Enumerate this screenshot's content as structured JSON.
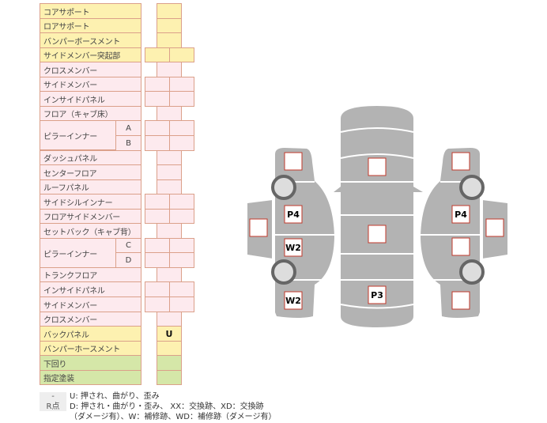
{
  "rows": [
    {
      "label": "コアサポート",
      "type": "single",
      "color": "y"
    },
    {
      "label": "ロアサポート",
      "type": "single",
      "color": "y"
    },
    {
      "label": "バンパーボースメント",
      "type": "single",
      "color": "y"
    },
    {
      "label": "サイドメンバー突起部",
      "type": "double",
      "color": "y"
    },
    {
      "label": "クロスメンバー",
      "type": "single",
      "color": "p"
    },
    {
      "label": "サイドメンバー",
      "type": "double",
      "color": "p"
    },
    {
      "label": "インサイドパネル",
      "type": "double",
      "color": "p"
    },
    {
      "label": "フロア（キャブ床）",
      "type": "single",
      "color": "p"
    },
    {
      "label": "ピラーインナー",
      "sub": "A",
      "type": "double",
      "color": "p",
      "group_start": true
    },
    {
      "label": "",
      "sub": "B",
      "type": "double",
      "color": "p"
    },
    {
      "label": "ダッシュパネル",
      "type": "single",
      "color": "p"
    },
    {
      "label": "センターフロア",
      "type": "single",
      "color": "p"
    },
    {
      "label": "ルーフパネル",
      "type": "single",
      "color": "p"
    },
    {
      "label": "サイドシルインナー",
      "type": "double",
      "color": "p"
    },
    {
      "label": "フロアサイドメンバー",
      "type": "double",
      "color": "p"
    },
    {
      "label": "セットバック（キャブ背）",
      "type": "single",
      "color": "p"
    },
    {
      "label": "ピラーインナー",
      "sub": "C",
      "type": "double",
      "color": "p",
      "group_start": true
    },
    {
      "label": "",
      "sub": "D",
      "type": "double",
      "color": "p"
    },
    {
      "label": "トランクフロア",
      "type": "single",
      "color": "p"
    },
    {
      "label": "インサイドパネル",
      "type": "double",
      "color": "p"
    },
    {
      "label": "サイドメンバー",
      "type": "double",
      "color": "p"
    },
    {
      "label": "クロスメンバー",
      "type": "single",
      "color": "p"
    },
    {
      "label": "バックパネル",
      "type": "single",
      "color": "y",
      "value": "U"
    },
    {
      "label": "バンパーホースメント",
      "type": "single",
      "color": "y"
    },
    {
      "label": "下回り",
      "type": "single",
      "color": "g"
    },
    {
      "label": "指定塗装",
      "type": "single",
      "color": "g"
    }
  ],
  "legend": [
    {
      "key": "-",
      "text": "U: 押され、曲がり、歪み"
    },
    {
      "key": "R点",
      "text": "D: 押され・曲がり・歪み、 XX：交換跡、XD：交換跡"
    },
    {
      "key": "",
      "text": "（ダメージ有）、W：補修跡、WD：補修跡（ダメージ有）"
    }
  ],
  "diagram": {
    "boxes": [
      {
        "part": "left-front-fender",
        "value": ""
      },
      {
        "part": "left-front-door",
        "value": "P4"
      },
      {
        "part": "left-rear-door",
        "value": "W2"
      },
      {
        "part": "left-rear-fender",
        "value": "W2"
      },
      {
        "part": "left-mirror-panel",
        "value": ""
      },
      {
        "part": "hood",
        "value": ""
      },
      {
        "part": "roof",
        "value": ""
      },
      {
        "part": "trunk",
        "value": "P3"
      },
      {
        "part": "right-front-fender",
        "value": ""
      },
      {
        "part": "right-front-door",
        "value": "P4"
      },
      {
        "part": "right-rear-door",
        "value": ""
      },
      {
        "part": "right-rear-fender",
        "value": ""
      },
      {
        "part": "right-mirror-panel",
        "value": ""
      }
    ],
    "body_color": "#b3b3b3",
    "box_border_color": "#c0392b"
  }
}
